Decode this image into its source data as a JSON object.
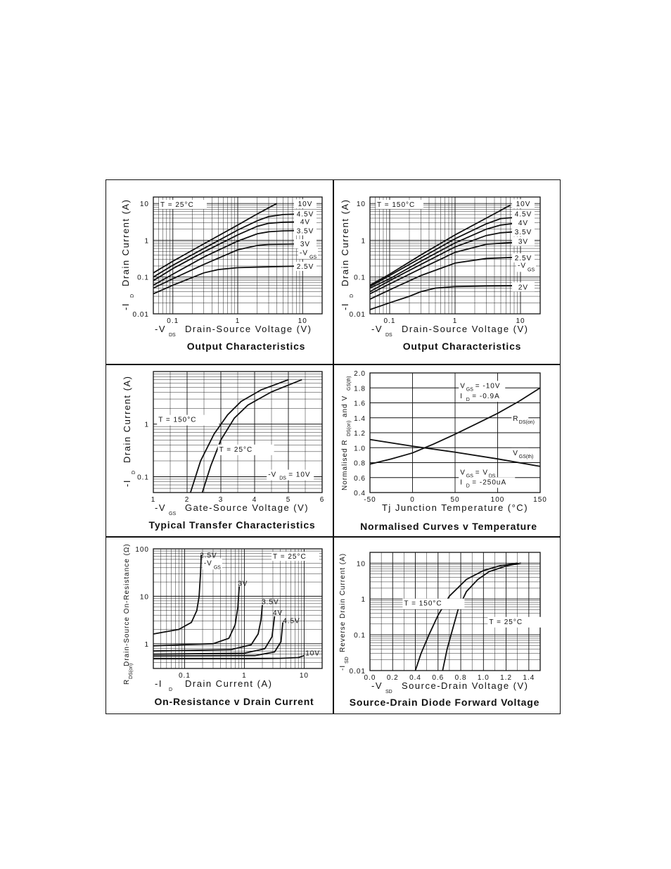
{
  "chart_data": [
    {
      "id": "p1",
      "type": "line",
      "title": "Output Characteristics",
      "xlabel": "-V",
      "xlabel_sub": "DS",
      "xlabel_tail": "Drain-Source Voltage (V)",
      "ylabel": "-I",
      "ylabel_sub": "D",
      "ylabel_tail": "Drain Current (A)",
      "xscale": "log",
      "yscale": "log",
      "xlim": [
        0.05,
        20
      ],
      "ylim": [
        0.01,
        15
      ],
      "xticks": [
        {
          "v": 0.1,
          "label": "0.1"
        },
        {
          "v": 1,
          "label": "1"
        },
        {
          "v": 10,
          "label": "10"
        }
      ],
      "yticks": [
        {
          "v": 10,
          "label": "10"
        },
        {
          "v": 1,
          "label": "1"
        },
        {
          "v": 0.1,
          "label": "0.1"
        },
        {
          "v": 0.01,
          "label": "0.01"
        }
      ],
      "condition": "T = 25°C",
      "vgs_label": "-V",
      "vgs_label_sub": "GS",
      "series": [
        {
          "name": "10V",
          "label_pos": [
            4.3,
            10
          ],
          "x": [
            0.05,
            0.1,
            0.3,
            1,
            2,
            4
          ],
          "y": [
            0.13,
            0.27,
            0.8,
            2.6,
            5.2,
            10
          ]
        },
        {
          "name": "4.5V",
          "label_pos": [
            10.5,
            5.3
          ],
          "x": [
            0.05,
            0.1,
            0.3,
            1,
            2,
            3,
            5,
            10
          ],
          "y": [
            0.1,
            0.21,
            0.6,
            1.9,
            3.4,
            4.4,
            5.0,
            5.2
          ]
        },
        {
          "name": "4V",
          "label_pos": [
            11.5,
            3.3
          ],
          "x": [
            0.05,
            0.1,
            0.3,
            1,
            2,
            3,
            5,
            10
          ],
          "y": [
            0.08,
            0.17,
            0.48,
            1.4,
            2.4,
            2.9,
            3.1,
            3.2
          ]
        },
        {
          "name": "3.5V",
          "label_pos": [
            11.5,
            1.85
          ],
          "x": [
            0.05,
            0.1,
            0.3,
            1,
            2,
            3,
            5,
            10
          ],
          "y": [
            0.06,
            0.12,
            0.35,
            0.95,
            1.5,
            1.7,
            1.8,
            1.85
          ]
        },
        {
          "name": "3V",
          "label_pos": [
            11.5,
            0.82
          ],
          "x": [
            0.05,
            0.1,
            0.3,
            1,
            2,
            3,
            10
          ],
          "y": [
            0.05,
            0.09,
            0.22,
            0.55,
            0.72,
            0.77,
            0.8
          ]
        },
        {
          "name": "2.5V",
          "label_pos": [
            12,
            0.2
          ],
          "x": [
            0.05,
            0.1,
            0.3,
            0.5,
            1,
            3,
            10
          ],
          "y": [
            0.035,
            0.06,
            0.13,
            0.16,
            0.18,
            0.19,
            0.2
          ]
        }
      ]
    },
    {
      "id": "p2",
      "type": "line",
      "title": "Output Characteristics",
      "xlabel": "-V",
      "xlabel_sub": "DS",
      "xlabel_tail": "Drain-Source Voltage (V)",
      "ylabel": "-I",
      "ylabel_sub": "D",
      "ylabel_tail": "Drain Current (A)",
      "xscale": "log",
      "yscale": "log",
      "xlim": [
        0.05,
        20
      ],
      "ylim": [
        0.01,
        15
      ],
      "xticks": [
        {
          "v": 0.1,
          "label": "0.1"
        },
        {
          "v": 1,
          "label": "1"
        },
        {
          "v": 10,
          "label": "10"
        }
      ],
      "yticks": [
        {
          "v": 10,
          "label": "10"
        },
        {
          "v": 1,
          "label": "1"
        },
        {
          "v": 0.1,
          "label": "0.1"
        },
        {
          "v": 0.01,
          "label": "0.01"
        }
      ],
      "condition": "T = 150°C",
      "vgs_label": "-V",
      "vgs_label_sub": "GS",
      "series": [
        {
          "name": "10V",
          "label_pos": [
            8,
            10
          ],
          "x": [
            0.05,
            0.1,
            0.3,
            1,
            3,
            7
          ],
          "y": [
            0.06,
            0.12,
            0.4,
            1.4,
            4.0,
            9
          ]
        },
        {
          "name": "4.5V",
          "label_pos": [
            11,
            5.3
          ],
          "x": [
            0.05,
            0.1,
            0.3,
            1,
            3,
            5,
            10
          ],
          "y": [
            0.055,
            0.11,
            0.33,
            1.1,
            2.8,
            3.9,
            4.3
          ]
        },
        {
          "name": "4V",
          "label_pos": [
            11,
            3.1
          ],
          "x": [
            0.05,
            0.1,
            0.3,
            1,
            3,
            5,
            10
          ],
          "y": [
            0.05,
            0.09,
            0.27,
            0.85,
            2.0,
            2.6,
            3.0
          ]
        },
        {
          "name": "3.5V",
          "label_pos": [
            11,
            1.75
          ],
          "x": [
            0.05,
            0.1,
            0.3,
            1,
            3,
            5,
            10
          ],
          "y": [
            0.04,
            0.08,
            0.22,
            0.66,
            1.35,
            1.6,
            1.75
          ]
        },
        {
          "name": "3V",
          "label_pos": [
            11,
            0.95
          ],
          "x": [
            0.05,
            0.1,
            0.3,
            1,
            3,
            10
          ],
          "y": [
            0.035,
            0.065,
            0.17,
            0.47,
            0.78,
            0.9
          ]
        },
        {
          "name": "2.5V",
          "label_pos": [
            12,
            0.34
          ],
          "x": [
            0.05,
            0.1,
            0.3,
            1,
            3,
            10
          ],
          "y": [
            0.025,
            0.045,
            0.11,
            0.24,
            0.32,
            0.35
          ]
        },
        {
          "name": "2V",
          "label_pos": [
            12,
            0.055
          ],
          "x": [
            0.05,
            0.1,
            0.2,
            0.3,
            0.5,
            1,
            3,
            10
          ],
          "y": [
            0.013,
            0.02,
            0.03,
            0.04,
            0.05,
            0.055,
            0.057,
            0.058
          ]
        }
      ]
    },
    {
      "id": "p3",
      "type": "line",
      "title": "Typical Transfer Characteristics",
      "xlabel": "-V",
      "xlabel_sub": "GS",
      "xlabel_tail": "Gate-Source Voltage (V)",
      "ylabel": "-I",
      "ylabel_sub": "D",
      "ylabel_tail": "Drain Current (A)",
      "xscale": "linear",
      "yscale": "log",
      "xlim": [
        1,
        6
      ],
      "ylim": [
        0.05,
        10
      ],
      "xticks": [
        {
          "v": 1,
          "label": "1"
        },
        {
          "v": 2,
          "label": "2"
        },
        {
          "v": 3,
          "label": "3"
        },
        {
          "v": 4,
          "label": "4"
        },
        {
          "v": 5,
          "label": "5"
        },
        {
          "v": 6,
          "label": "6"
        }
      ],
      "yticks": [
        {
          "v": 1,
          "label": "1"
        },
        {
          "v": 0.1,
          "label": "0.1"
        }
      ],
      "annotations": [
        {
          "text": "T = 150°C",
          "at": [
            1.15,
            1.1
          ]
        },
        {
          "text": "T = 25°C",
          "at": [
            2.95,
            0.3
          ]
        },
        {
          "text": "-V",
          "sub": "DS",
          "tail": "= 10V",
          "at": [
            4.4,
            0.1
          ]
        }
      ],
      "series": [
        {
          "name": "150°C",
          "x": [
            2.1,
            2.4,
            2.8,
            3.2,
            3.6,
            4.2,
            5.0
          ],
          "y": [
            0.05,
            0.2,
            0.65,
            1.5,
            2.7,
            4.5,
            7
          ]
        },
        {
          "name": "25°C",
          "x": [
            2.45,
            2.7,
            3.0,
            3.4,
            3.8,
            4.5,
            5.4
          ],
          "y": [
            0.05,
            0.16,
            0.5,
            1.3,
            2.3,
            4.1,
            7
          ]
        }
      ]
    },
    {
      "id": "p4",
      "type": "line",
      "title": "Normalised Curves v Temperature",
      "xlabel": "Tj Junction Temperature (°C)",
      "ylabel": "Normalised R",
      "ylabel_sub": "DS(on)",
      "ylabel_mid": "and V",
      "ylabel_sub2": "GS(th)",
      "xscale": "linear",
      "yscale": "linear",
      "xlim": [
        -50,
        150
      ],
      "ylim": [
        0.4,
        2.0
      ],
      "xticks": [
        {
          "v": -50,
          "label": "-50"
        },
        {
          "v": 0,
          "label": "0"
        },
        {
          "v": 50,
          "label": "50"
        },
        {
          "v": 100,
          "label": "100"
        },
        {
          "v": 150,
          "label": "150"
        }
      ],
      "yticks": [
        {
          "v": 2.0,
          "label": "2.0"
        },
        {
          "v": 1.8,
          "label": "1.8"
        },
        {
          "v": 1.6,
          "label": "1.6"
        },
        {
          "v": 1.4,
          "label": "1.4"
        },
        {
          "v": 1.2,
          "label": "1.2"
        },
        {
          "v": 1.0,
          "label": "1.0"
        },
        {
          "v": 0.8,
          "label": "0.8"
        },
        {
          "v": 0.6,
          "label": "0.6"
        },
        {
          "v": 0.4,
          "label": "0.4"
        }
      ],
      "annotations": [
        {
          "text": "V",
          "sub": "GS",
          "tail": "= -10V",
          "at": [
            56,
            1.8
          ]
        },
        {
          "text": "I",
          "sub": "D",
          "tail": "= -0.9A",
          "at": [
            56,
            1.66
          ]
        },
        {
          "text": "R",
          "sub": "DS(on)",
          "tail": "",
          "at": [
            118,
            1.36
          ]
        },
        {
          "text": "V",
          "sub": "GS(th)",
          "tail": "",
          "at": [
            118,
            0.9
          ]
        },
        {
          "text": "V",
          "sub": "GS",
          "tail": "= V",
          "sub2": "DS",
          "at": [
            56,
            0.64
          ]
        },
        {
          "text": "I",
          "sub": "D",
          "tail": "= -250uA",
          "at": [
            56,
            0.51
          ]
        }
      ],
      "series": [
        {
          "name": "R",
          "x": [
            -50,
            -25,
            0,
            25,
            50,
            75,
            100,
            125,
            150
          ],
          "y": [
            0.78,
            0.85,
            0.93,
            1.05,
            1.18,
            1.32,
            1.46,
            1.62,
            1.8
          ]
        },
        {
          "name": "V",
          "x": [
            -50,
            0,
            50,
            100,
            150
          ],
          "y": [
            1.11,
            1.02,
            0.94,
            0.85,
            0.75
          ]
        }
      ]
    },
    {
      "id": "p5",
      "type": "line",
      "title": "On-Resistance v Drain Current",
      "xlabel": "-I",
      "xlabel_sub": "D",
      "xlabel_tail": "Drain Current (A)",
      "ylabel": "R",
      "ylabel_sub": "DS(on)",
      "ylabel_tail": "Drain-Source On-Resistance (Ω)",
      "xscale": "log",
      "yscale": "log",
      "xlim": [
        0.03,
        20
      ],
      "ylim": [
        0.3,
        100
      ],
      "xticks": [
        {
          "v": 0.1,
          "label": "0.1"
        },
        {
          "v": 1,
          "label": "1"
        },
        {
          "v": 10,
          "label": "10"
        }
      ],
      "yticks": [
        {
          "v": 100,
          "label": "100"
        },
        {
          "v": 10,
          "label": "10"
        },
        {
          "v": 1,
          "label": "1"
        }
      ],
      "condition": "T = 25°C",
      "vgs_label": "-V",
      "vgs_label_sub": "GS",
      "series": [
        {
          "name": "2.5V",
          "label_pos": [
            0.18,
            75
          ],
          "x": [
            0.03,
            0.08,
            0.13,
            0.16,
            0.175,
            0.185,
            0.19
          ],
          "y": [
            1.6,
            2.0,
            2.8,
            5,
            10,
            30,
            75
          ]
        },
        {
          "name": "3V",
          "label_pos": [
            0.78,
            19
          ],
          "x": [
            0.03,
            0.3,
            0.55,
            0.7,
            0.78,
            0.82
          ],
          "y": [
            0.9,
            1.0,
            1.3,
            2.5,
            6,
            16
          ]
        },
        {
          "name": "3.5V",
          "label_pos": [
            1.95,
            7.8
          ],
          "x": [
            0.03,
            0.6,
            1.3,
            1.7,
            1.9,
            2.0
          ],
          "y": [
            0.7,
            0.75,
            0.95,
            1.6,
            3.2,
            6.5
          ]
        },
        {
          "name": "4V",
          "label_pos": [
            3.0,
            4.6
          ],
          "x": [
            0.03,
            1,
            2.2,
            2.9,
            3.2
          ],
          "y": [
            0.6,
            0.63,
            0.78,
            1.4,
            3.8
          ]
        },
        {
          "name": "4.5V",
          "label_pos": [
            4.4,
            3.1
          ],
          "x": [
            0.03,
            1.5,
            3.2,
            4.1,
            4.4
          ],
          "y": [
            0.55,
            0.56,
            0.67,
            1.1,
            2.8
          ]
        },
        {
          "name": "10V",
          "label_pos": [
            10.5,
            0.65
          ],
          "x": [
            0.03,
            1,
            4,
            8,
            10
          ],
          "y": [
            0.48,
            0.48,
            0.49,
            0.51,
            0.56
          ]
        }
      ]
    },
    {
      "id": "p6",
      "type": "line",
      "title": "Source-Drain Diode Forward Voltage",
      "xlabel": "-V",
      "xlabel_sub": "SD",
      "xlabel_tail": "Source-Drain Voltage (V)",
      "ylabel": "-I",
      "ylabel_sub": "SD",
      "ylabel_tail": "Reverse Drain Current (A)",
      "xscale": "linear",
      "yscale": "log",
      "xlim": [
        0,
        1.5
      ],
      "ylim": [
        0.01,
        20
      ],
      "xticks": [
        {
          "v": 0,
          "label": "0.0"
        },
        {
          "v": 0.2,
          "label": "0.2"
        },
        {
          "v": 0.4,
          "label": "0.4"
        },
        {
          "v": 0.6,
          "label": "0.6"
        },
        {
          "v": 0.8,
          "label": "0.8"
        },
        {
          "v": 1.0,
          "label": "1.0"
        },
        {
          "v": 1.2,
          "label": "1.2"
        },
        {
          "v": 1.4,
          "label": "1.4"
        }
      ],
      "yticks": [
        {
          "v": 10,
          "label": "10"
        },
        {
          "v": 1,
          "label": "1"
        },
        {
          "v": 0.1,
          "label": "0.1"
        },
        {
          "v": 0.01,
          "label": "0.01"
        }
      ],
      "annotations": [
        {
          "text": "T = 150°C",
          "at": [
            0.3,
            0.65
          ]
        },
        {
          "text": "T = 25°C",
          "at": [
            1.05,
            0.2
          ]
        }
      ],
      "series": [
        {
          "name": "150°C",
          "x": [
            0.4,
            0.45,
            0.52,
            0.6,
            0.7,
            0.85,
            1.0,
            1.15,
            1.3
          ],
          "y": [
            0.01,
            0.03,
            0.1,
            0.35,
            1.2,
            3.5,
            6.2,
            8.5,
            10
          ]
        },
        {
          "name": "25°C",
          "x": [
            0.64,
            0.68,
            0.73,
            0.78,
            0.85,
            0.95,
            1.05,
            1.2,
            1.33
          ],
          "y": [
            0.01,
            0.04,
            0.15,
            0.55,
            1.6,
            3.5,
            5.8,
            8.3,
            10
          ]
        }
      ]
    }
  ]
}
